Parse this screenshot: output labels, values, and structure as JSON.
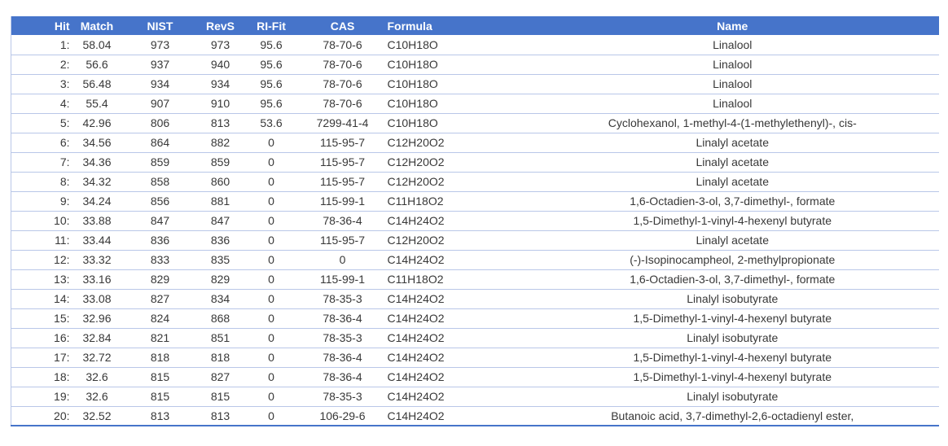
{
  "table": {
    "columns": [
      {
        "key": "hit",
        "label": "Hit"
      },
      {
        "key": "match",
        "label": "Match"
      },
      {
        "key": "nist",
        "label": "NIST"
      },
      {
        "key": "revs",
        "label": "RevS"
      },
      {
        "key": "rifit",
        "label": "RI-Fit"
      },
      {
        "key": "cas",
        "label": "CAS"
      },
      {
        "key": "formula",
        "label": "Formula"
      },
      {
        "key": "name",
        "label": "Name"
      }
    ],
    "rows": [
      {
        "hit": "1:",
        "match": "58.04",
        "nist": "973",
        "revs": "973",
        "rifit": "95.6",
        "cas": "78-70-6",
        "formula": "C10H18O",
        "name": "Linalool"
      },
      {
        "hit": "2:",
        "match": "56.6",
        "nist": "937",
        "revs": "940",
        "rifit": "95.6",
        "cas": "78-70-6",
        "formula": "C10H18O",
        "name": "Linalool"
      },
      {
        "hit": "3:",
        "match": "56.48",
        "nist": "934",
        "revs": "934",
        "rifit": "95.6",
        "cas": "78-70-6",
        "formula": "C10H18O",
        "name": "Linalool"
      },
      {
        "hit": "4:",
        "match": "55.4",
        "nist": "907",
        "revs": "910",
        "rifit": "95.6",
        "cas": "78-70-6",
        "formula": "C10H18O",
        "name": "Linalool"
      },
      {
        "hit": "5:",
        "match": "42.96",
        "nist": "806",
        "revs": "813",
        "rifit": "53.6",
        "cas": "7299-41-4",
        "formula": "C10H18O",
        "name": "Cyclohexanol, 1-methyl-4-(1-methylethenyl)-, cis-"
      },
      {
        "hit": "6:",
        "match": "34.56",
        "nist": "864",
        "revs": "882",
        "rifit": "0",
        "cas": "115-95-7",
        "formula": "C12H20O2",
        "name": "Linalyl acetate"
      },
      {
        "hit": "7:",
        "match": "34.36",
        "nist": "859",
        "revs": "859",
        "rifit": "0",
        "cas": "115-95-7",
        "formula": "C12H20O2",
        "name": "Linalyl acetate"
      },
      {
        "hit": "8:",
        "match": "34.32",
        "nist": "858",
        "revs": "860",
        "rifit": "0",
        "cas": "115-95-7",
        "formula": "C12H20O2",
        "name": "Linalyl acetate"
      },
      {
        "hit": "9:",
        "match": "34.24",
        "nist": "856",
        "revs": "881",
        "rifit": "0",
        "cas": "115-99-1",
        "formula": "C11H18O2",
        "name": "1,6-Octadien-3-ol, 3,7-dimethyl-, formate"
      },
      {
        "hit": "10:",
        "match": "33.88",
        "nist": "847",
        "revs": "847",
        "rifit": "0",
        "cas": "78-36-4",
        "formula": "C14H24O2",
        "name": "1,5-Dimethyl-1-vinyl-4-hexenyl butyrate"
      },
      {
        "hit": "11:",
        "match": "33.44",
        "nist": "836",
        "revs": "836",
        "rifit": "0",
        "cas": "115-95-7",
        "formula": "C12H20O2",
        "name": "Linalyl acetate"
      },
      {
        "hit": "12:",
        "match": "33.32",
        "nist": "833",
        "revs": "835",
        "rifit": "0",
        "cas": "0",
        "formula": "C14H24O2",
        "name": "(-)-Isopinocampheol, 2-methylpropionate"
      },
      {
        "hit": "13:",
        "match": "33.16",
        "nist": "829",
        "revs": "829",
        "rifit": "0",
        "cas": "115-99-1",
        "formula": "C11H18O2",
        "name": "1,6-Octadien-3-ol, 3,7-dimethyl-, formate"
      },
      {
        "hit": "14:",
        "match": "33.08",
        "nist": "827",
        "revs": "834",
        "rifit": "0",
        "cas": "78-35-3",
        "formula": "C14H24O2",
        "name": "Linalyl isobutyrate"
      },
      {
        "hit": "15:",
        "match": "32.96",
        "nist": "824",
        "revs": "868",
        "rifit": "0",
        "cas": "78-36-4",
        "formula": "C14H24O2",
        "name": "1,5-Dimethyl-1-vinyl-4-hexenyl butyrate"
      },
      {
        "hit": "16:",
        "match": "32.84",
        "nist": "821",
        "revs": "851",
        "rifit": "0",
        "cas": "78-35-3",
        "formula": "C14H24O2",
        "name": "Linalyl isobutyrate"
      },
      {
        "hit": "17:",
        "match": "32.72",
        "nist": "818",
        "revs": "818",
        "rifit": "0",
        "cas": "78-36-4",
        "formula": "C14H24O2",
        "name": "1,5-Dimethyl-1-vinyl-4-hexenyl butyrate"
      },
      {
        "hit": "18:",
        "match": "32.6",
        "nist": "815",
        "revs": "827",
        "rifit": "0",
        "cas": "78-36-4",
        "formula": "C14H24O2",
        "name": "1,5-Dimethyl-1-vinyl-4-hexenyl butyrate"
      },
      {
        "hit": "19:",
        "match": "32.6",
        "nist": "815",
        "revs": "815",
        "rifit": "0",
        "cas": "78-35-3",
        "formula": "C14H24O2",
        "name": "Linalyl isobutyrate"
      },
      {
        "hit": "20:",
        "match": "32.52",
        "nist": "813",
        "revs": "813",
        "rifit": "0",
        "cas": "106-29-6",
        "formula": "C14H24O2",
        "name": "Butanoic acid, 3,7-dimethyl-2,6-octadienyl ester,"
      }
    ],
    "colors": {
      "header_bg": "#4674CA",
      "header_text": "#FFFFFF",
      "row_line": "#B9C7E8",
      "bottom_border": "#4674CA",
      "body_text": "#383838",
      "background": "#FFFFFF"
    }
  }
}
